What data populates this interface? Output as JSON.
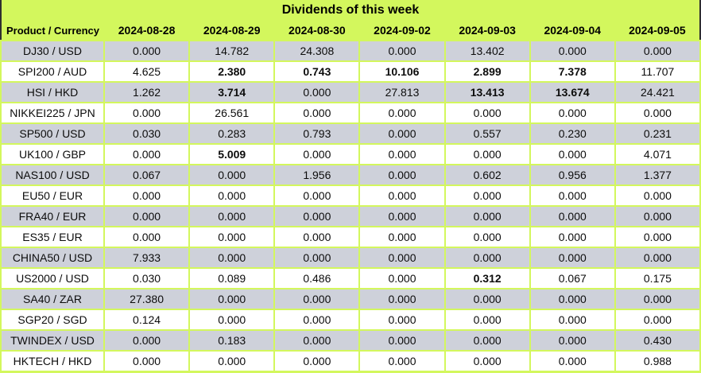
{
  "title": "Dividends of this week",
  "columns": [
    "Product / Currency",
    "2024-08-28",
    "2024-08-29",
    "2024-08-30",
    "2024-09-02",
    "2024-09-03",
    "2024-09-04",
    "2024-09-05"
  ],
  "colors": {
    "header_green": "#d3f75d",
    "row_gray": "#ced1da",
    "row_white": "#ffffff",
    "outer_border_dark": "#2f2f2f",
    "text": "#000000"
  },
  "rows": [
    {
      "product": "DJ30 / USD",
      "values": [
        "0.000",
        "14.782",
        "24.308",
        "0.000",
        "13.402",
        "0.000",
        "0.000"
      ],
      "bold": [
        0,
        0,
        0,
        0,
        0,
        0,
        0
      ]
    },
    {
      "product": "SPI200 / AUD",
      "values": [
        "4.625",
        "2.380",
        "0.743",
        "10.106",
        "2.899",
        "7.378",
        "11.707"
      ],
      "bold": [
        0,
        1,
        1,
        1,
        1,
        1,
        0
      ]
    },
    {
      "product": "HSI / HKD",
      "values": [
        "1.262",
        "3.714",
        "0.000",
        "27.813",
        "13.413",
        "13.674",
        "24.421"
      ],
      "bold": [
        0,
        1,
        0,
        0,
        1,
        1,
        0
      ]
    },
    {
      "product": "NIKKEI225 / JPN",
      "values": [
        "0.000",
        "26.561",
        "0.000",
        "0.000",
        "0.000",
        "0.000",
        "0.000"
      ],
      "bold": [
        0,
        0,
        0,
        0,
        0,
        0,
        0
      ]
    },
    {
      "product": "SP500 / USD",
      "values": [
        "0.030",
        "0.283",
        "0.793",
        "0.000",
        "0.557",
        "0.230",
        "0.231"
      ],
      "bold": [
        0,
        0,
        0,
        0,
        0,
        0,
        0
      ]
    },
    {
      "product": "UK100 / GBP",
      "values": [
        "0.000",
        "5.009",
        "0.000",
        "0.000",
        "0.000",
        "0.000",
        "4.071"
      ],
      "bold": [
        0,
        1,
        0,
        0,
        0,
        0,
        0
      ]
    },
    {
      "product": "NAS100 / USD",
      "values": [
        "0.067",
        "0.000",
        "1.956",
        "0.000",
        "0.602",
        "0.956",
        "1.377"
      ],
      "bold": [
        0,
        0,
        0,
        0,
        0,
        0,
        0
      ]
    },
    {
      "product": "EU50 / EUR",
      "values": [
        "0.000",
        "0.000",
        "0.000",
        "0.000",
        "0.000",
        "0.000",
        "0.000"
      ],
      "bold": [
        0,
        0,
        0,
        0,
        0,
        0,
        0
      ]
    },
    {
      "product": "FRA40 / EUR",
      "values": [
        "0.000",
        "0.000",
        "0.000",
        "0.000",
        "0.000",
        "0.000",
        "0.000"
      ],
      "bold": [
        0,
        0,
        0,
        0,
        0,
        0,
        0
      ]
    },
    {
      "product": "ES35 / EUR",
      "values": [
        "0.000",
        "0.000",
        "0.000",
        "0.000",
        "0.000",
        "0.000",
        "0.000"
      ],
      "bold": [
        0,
        0,
        0,
        0,
        0,
        0,
        0
      ]
    },
    {
      "product": "CHINA50 / USD",
      "values": [
        "7.933",
        "0.000",
        "0.000",
        "0.000",
        "0.000",
        "0.000",
        "0.000"
      ],
      "bold": [
        0,
        0,
        0,
        0,
        0,
        0,
        0
      ]
    },
    {
      "product": "US2000 / USD",
      "values": [
        "0.030",
        "0.089",
        "0.486",
        "0.000",
        "0.312",
        "0.067",
        "0.175"
      ],
      "bold": [
        0,
        0,
        0,
        0,
        1,
        0,
        0
      ]
    },
    {
      "product": "SA40 / ZAR",
      "values": [
        "27.380",
        "0.000",
        "0.000",
        "0.000",
        "0.000",
        "0.000",
        "0.000"
      ],
      "bold": [
        0,
        0,
        0,
        0,
        0,
        0,
        0
      ]
    },
    {
      "product": "SGP20 / SGD",
      "values": [
        "0.124",
        "0.000",
        "0.000",
        "0.000",
        "0.000",
        "0.000",
        "0.000"
      ],
      "bold": [
        0,
        0,
        0,
        0,
        0,
        0,
        0
      ]
    },
    {
      "product": "TWINDEX / USD",
      "values": [
        "0.000",
        "0.183",
        "0.000",
        "0.000",
        "0.000",
        "0.000",
        "0.430"
      ],
      "bold": [
        0,
        0,
        0,
        0,
        0,
        0,
        0
      ]
    },
    {
      "product": "HKTECH / HKD",
      "values": [
        "0.000",
        "0.000",
        "0.000",
        "0.000",
        "0.000",
        "0.000",
        "0.988"
      ],
      "bold": [
        0,
        0,
        0,
        0,
        0,
        0,
        0
      ]
    }
  ],
  "chart_data": {
    "type": "table",
    "title": "Dividends of this week",
    "columns": [
      "Product / Currency",
      "2024-08-28",
      "2024-08-29",
      "2024-08-30",
      "2024-09-02",
      "2024-09-03",
      "2024-09-04",
      "2024-09-05"
    ],
    "rows": [
      [
        "DJ30 / USD",
        0.0,
        14.782,
        24.308,
        0.0,
        13.402,
        0.0,
        0.0
      ],
      [
        "SPI200 / AUD",
        4.625,
        2.38,
        0.743,
        10.106,
        2.899,
        7.378,
        11.707
      ],
      [
        "HSI / HKD",
        1.262,
        3.714,
        0.0,
        27.813,
        13.413,
        13.674,
        24.421
      ],
      [
        "NIKKEI225 / JPN",
        0.0,
        26.561,
        0.0,
        0.0,
        0.0,
        0.0,
        0.0
      ],
      [
        "SP500 / USD",
        0.03,
        0.283,
        0.793,
        0.0,
        0.557,
        0.23,
        0.231
      ],
      [
        "UK100 / GBP",
        0.0,
        5.009,
        0.0,
        0.0,
        0.0,
        0.0,
        4.071
      ],
      [
        "NAS100 / USD",
        0.067,
        0.0,
        1.956,
        0.0,
        0.602,
        0.956,
        1.377
      ],
      [
        "EU50 / EUR",
        0.0,
        0.0,
        0.0,
        0.0,
        0.0,
        0.0,
        0.0
      ],
      [
        "FRA40 / EUR",
        0.0,
        0.0,
        0.0,
        0.0,
        0.0,
        0.0,
        0.0
      ],
      [
        "ES35 / EUR",
        0.0,
        0.0,
        0.0,
        0.0,
        0.0,
        0.0,
        0.0
      ],
      [
        "CHINA50 / USD",
        7.933,
        0.0,
        0.0,
        0.0,
        0.0,
        0.0,
        0.0
      ],
      [
        "US2000 / USD",
        0.03,
        0.089,
        0.486,
        0.0,
        0.312,
        0.067,
        0.175
      ],
      [
        "SA40 / ZAR",
        27.38,
        0.0,
        0.0,
        0.0,
        0.0,
        0.0,
        0.0
      ],
      [
        "SGP20 / SGD",
        0.124,
        0.0,
        0.0,
        0.0,
        0.0,
        0.0,
        0.0
      ],
      [
        "TWINDEX / USD",
        0.0,
        0.183,
        0.0,
        0.0,
        0.0,
        0.0,
        0.43
      ],
      [
        "HKTECH / HKD",
        0.0,
        0.0,
        0.0,
        0.0,
        0.0,
        0.0,
        0.988
      ]
    ]
  }
}
